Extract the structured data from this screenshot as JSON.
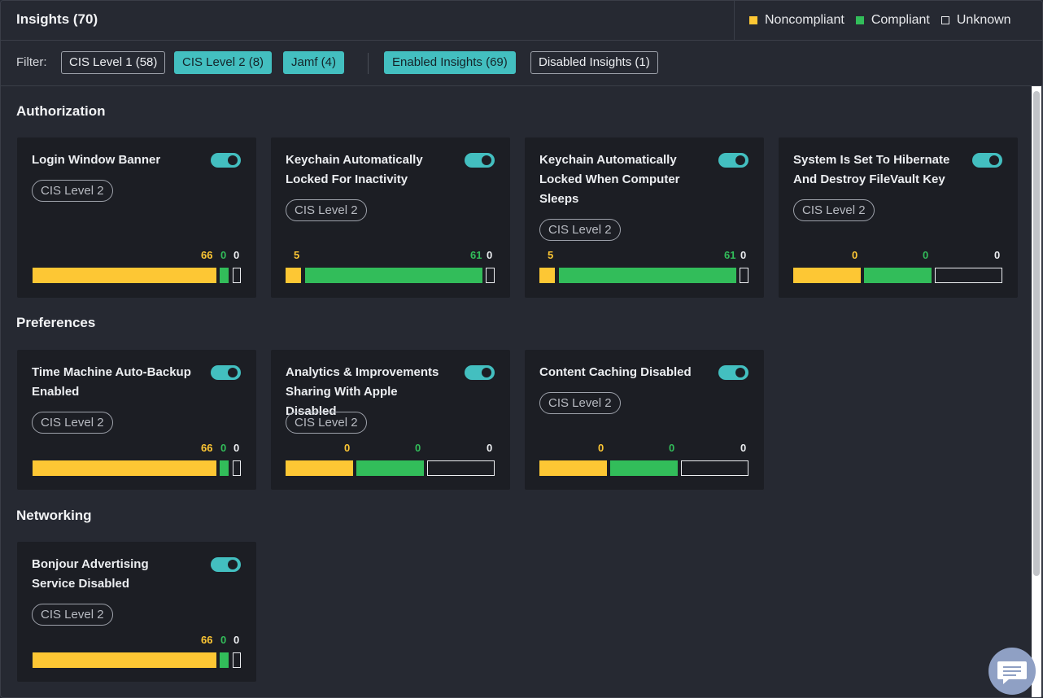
{
  "header": {
    "title": "Insights (70)",
    "legend": {
      "noncompliant": "Noncompliant",
      "compliant": "Compliant",
      "unknown": "Unknown"
    }
  },
  "colors": {
    "noncompliant": "#fdc734",
    "compliant": "#32bd5a",
    "unknown": "#eceef1",
    "accent": "#43bfc0"
  },
  "filter": {
    "label": "Filter:",
    "chips": [
      {
        "label": "CIS Level 1 (58)",
        "active": false
      },
      {
        "label": "CIS Level 2 (8)",
        "active": true
      },
      {
        "label": "Jamf (4)",
        "active": true
      },
      {
        "label": "Enabled Insights (69)",
        "active": true
      },
      {
        "label": "Disabled Insights (1)",
        "active": false
      }
    ]
  },
  "sections": [
    {
      "title": "Authorization",
      "cards": [
        {
          "title": "Login Window Banner",
          "tag": "CIS Level 2",
          "enabled": true,
          "noncompliant": "66",
          "compliant": "0",
          "unknown": "0"
        },
        {
          "title": "Keychain Automatically Locked For Inactivity",
          "tag": "CIS Level 2",
          "enabled": true,
          "noncompliant": "5",
          "compliant": "61",
          "unknown": "0"
        },
        {
          "title": "Keychain Automatically Locked When Computer Sleeps",
          "tag": "CIS Level 2",
          "enabled": true,
          "noncompliant": "5",
          "compliant": "61",
          "unknown": "0"
        },
        {
          "title": "System Is Set To Hibernate And Destroy FileVault Key",
          "tag": "CIS Level 2",
          "enabled": true,
          "noncompliant": "0",
          "compliant": "0",
          "unknown": "0"
        }
      ]
    },
    {
      "title": "Preferences",
      "cards": [
        {
          "title": "Time Machine Auto-Backup Enabled",
          "tag": "CIS Level 2",
          "enabled": true,
          "noncompliant": "66",
          "compliant": "0",
          "unknown": "0"
        },
        {
          "title": "Analytics & Improvements Sharing With Apple Disabled",
          "tag": "CIS Level 2",
          "enabled": true,
          "noncompliant": "0",
          "compliant": "0",
          "unknown": "0"
        },
        {
          "title": "Content Caching Disabled",
          "tag": "CIS Level 2",
          "enabled": true,
          "noncompliant": "0",
          "compliant": "0",
          "unknown": "0"
        }
      ]
    },
    {
      "title": "Networking",
      "cards": [
        {
          "title": "Bonjour Advertising Service Disabled",
          "tag": "CIS Level 2",
          "enabled": true,
          "noncompliant": "66",
          "compliant": "0",
          "unknown": "0"
        }
      ]
    }
  ],
  "icons": {
    "chat": "chat-icon"
  }
}
